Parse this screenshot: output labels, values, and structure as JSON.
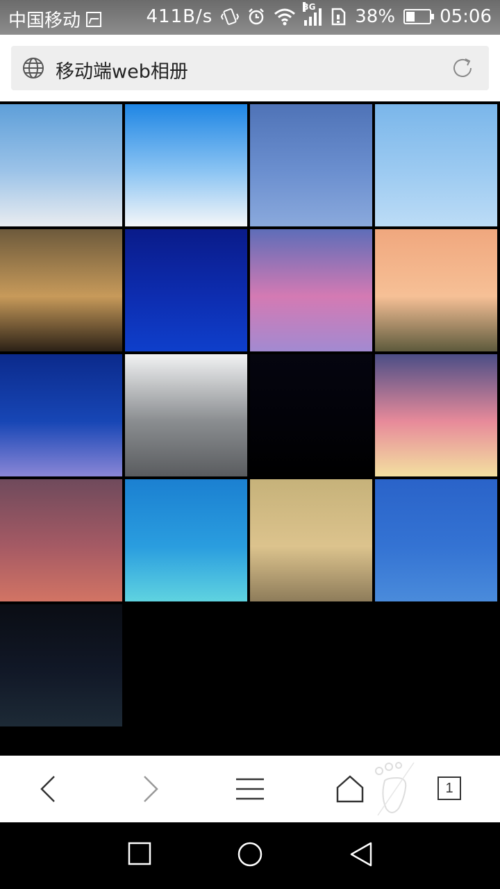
{
  "status_bar": {
    "carrier": "中国移动",
    "net_speed": "411B/s",
    "network_type": "3G",
    "battery_percent": "38%",
    "battery_level": 0.38,
    "time": "05:06",
    "icons": [
      "gallery-icon",
      "vibrate-icon",
      "alarm-icon",
      "wifi-icon",
      "signal-icon",
      "sim-icon",
      "battery-icon"
    ]
  },
  "address_bar": {
    "title": "移动端web相册",
    "icons": [
      "globe-icon",
      "reload-icon"
    ]
  },
  "gallery": {
    "photos": [
      {
        "name": "sky-clouds-blue",
        "colors": [
          "#5e9fd9",
          "#9cc3e8",
          "#e9ecf0"
        ]
      },
      {
        "name": "clear-blue-sky-horizon",
        "colors": [
          "#1f86e4",
          "#8bc4f3",
          "#f4f6f8"
        ]
      },
      {
        "name": "wispy-cirrus-blue",
        "colors": [
          "#4f73b7",
          "#6b8fcf",
          "#8aa9dc"
        ]
      },
      {
        "name": "pale-blue-sky",
        "colors": [
          "#7ab6ea",
          "#9ccaf1",
          "#bcdcf6"
        ]
      },
      {
        "name": "bare-tree-golden-sky",
        "colors": [
          "#6d5a3c",
          "#c79a5a",
          "#2b2116"
        ]
      },
      {
        "name": "deep-blue-sky",
        "colors": [
          "#0a1b8a",
          "#0d2db0",
          "#0e3fcb"
        ]
      },
      {
        "name": "pink-purple-clouds",
        "colors": [
          "#5e6db8",
          "#d47ab3",
          "#a28ad1"
        ]
      },
      {
        "name": "sunset-field",
        "colors": [
          "#f0a77e",
          "#f6c096",
          "#5d5a3c"
        ]
      },
      {
        "name": "dark-blue-dusk",
        "colors": [
          "#0b2a8c",
          "#1746b5",
          "#8a86d6"
        ]
      },
      {
        "name": "grey-storm-clouds",
        "colors": [
          "#f1f2f3",
          "#8a8d90",
          "#5a5c5f"
        ]
      },
      {
        "name": "night-black",
        "colors": [
          "#05050f",
          "#020208",
          "#000000"
        ]
      },
      {
        "name": "trees-pink-sunset",
        "colors": [
          "#4b4e86",
          "#e78a9a",
          "#f3e0a0"
        ]
      },
      {
        "name": "mauve-pink-sky",
        "colors": [
          "#6f4a5c",
          "#a55a64",
          "#d27464"
        ]
      },
      {
        "name": "turquoise-sea",
        "colors": [
          "#1b80d1",
          "#2a9ddf",
          "#5fd3e0"
        ]
      },
      {
        "name": "golden-clouds",
        "colors": [
          "#c6b27a",
          "#dcc38d",
          "#8e7c5a"
        ]
      },
      {
        "name": "plain-blue",
        "colors": [
          "#2a63c9",
          "#3473d3",
          "#4a8bdb"
        ]
      },
      {
        "name": "starry-night",
        "colors": [
          "#0a0d14",
          "#111827",
          "#1d2a36"
        ]
      }
    ]
  },
  "toolbar": {
    "tabs_count": "1",
    "icons": [
      "back-icon",
      "forward-icon",
      "menu-icon",
      "home-icon",
      "tabs-icon"
    ]
  },
  "nav_bar": {
    "icons": [
      "recents-icon",
      "home-circle-icon",
      "back-triangle-icon"
    ]
  }
}
